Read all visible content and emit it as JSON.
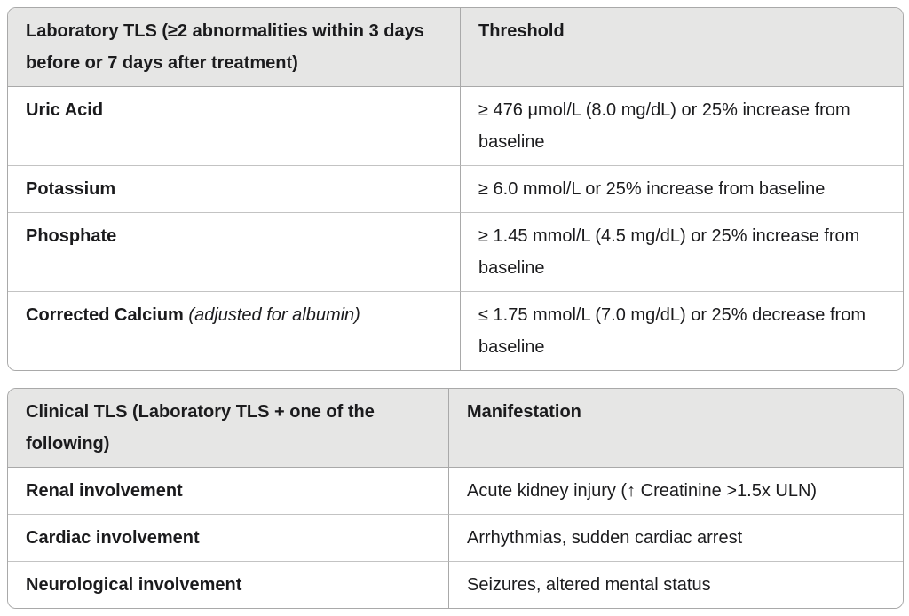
{
  "colors": {
    "page_background": "#ffffff",
    "header_background": "#e6e6e5",
    "outer_border": "#a9a9a9",
    "row_divider": "#c3c3c3",
    "text": "#1b1b1d"
  },
  "laboratory_table": {
    "headers": [
      "Laboratory TLS (≥2 abnormalities within 3 days before or 7 days after treatment)",
      "Threshold"
    ],
    "rows": [
      {
        "label": "Uric Acid",
        "value": "≥ 476 μmol/L (8.0 mg/dL) or 25% increase from baseline"
      },
      {
        "label": "Potassium",
        "value": "≥ 6.0 mmol/L or 25% increase from baseline"
      },
      {
        "label": "Phosphate",
        "value": "≥ 1.45 mmol/L (4.5 mg/dL) or 25% increase from baseline"
      },
      {
        "label": "Corrected Calcium",
        "note": "(adjusted for albumin)",
        "value": "≤ 1.75 mmol/L (7.0 mg/dL) or 25% decrease from baseline"
      }
    ]
  },
  "clinical_table": {
    "headers": [
      "Clinical TLS (Laboratory TLS + one of the following)",
      "Manifestation"
    ],
    "rows": [
      {
        "label": "Renal involvement",
        "value": "Acute kidney injury (↑ Creatinine >1.5x ULN)"
      },
      {
        "label": "Cardiac involvement",
        "value": "Arrhythmias, sudden cardiac arrest"
      },
      {
        "label": "Neurological involvement",
        "value": "Seizures, altered mental status"
      }
    ]
  }
}
